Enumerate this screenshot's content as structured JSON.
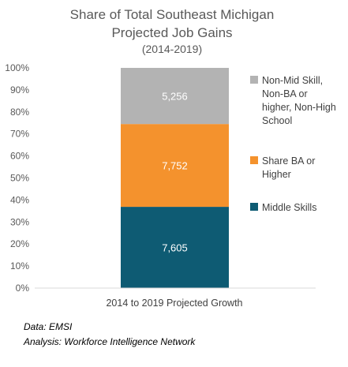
{
  "chart_data": {
    "type": "bar",
    "stacked": true,
    "normalized": true,
    "title": "Share of Total Southeast Michigan Projected Job Gains",
    "subtitle": "(2014-2019)",
    "categories": [
      "2014 to 2019 Projected Growth"
    ],
    "series": [
      {
        "name": "Middle Skills",
        "values": [
          7605
        ],
        "color": "#0e5b73"
      },
      {
        "name": "Share BA or Higher",
        "values": [
          7752
        ],
        "color": "#f4922d"
      },
      {
        "name": "Non-Mid Skill, Non-BA or higher, Non-High School",
        "values": [
          5256
        ],
        "color": "#b3b3b3"
      }
    ],
    "data_labels": [
      "7,605",
      "7,752",
      "5,256"
    ],
    "ylim": [
      0,
      100
    ],
    "yticks": [
      "0%",
      "10%",
      "20%",
      "30%",
      "40%",
      "50%",
      "60%",
      "70%",
      "80%",
      "90%",
      "100%"
    ],
    "xlabel": "",
    "ylabel": "",
    "grid": false,
    "legend_position": "right"
  },
  "source": {
    "data_line": "Data: EMSI",
    "analysis_line": "Analysis: Workforce Intelligence Network"
  }
}
